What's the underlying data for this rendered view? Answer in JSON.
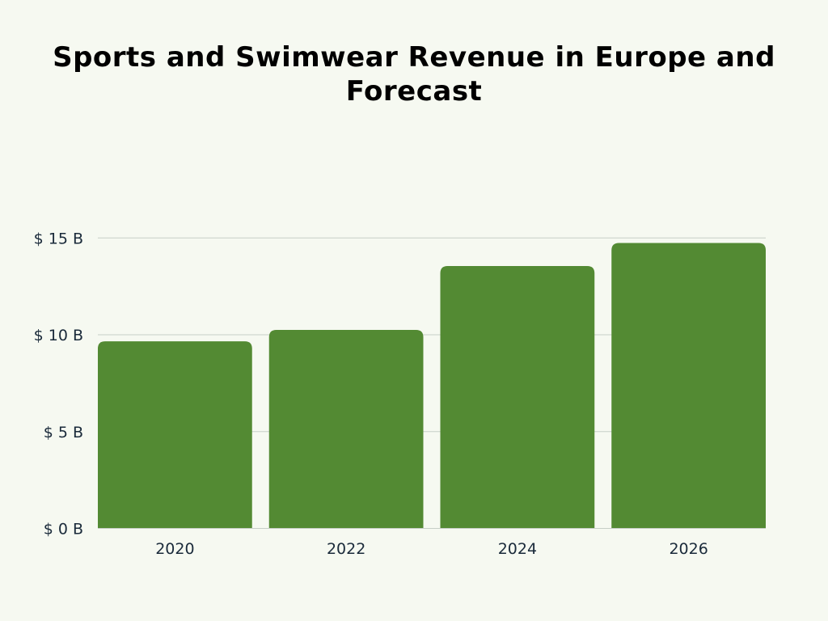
{
  "chart_data": {
    "type": "bar",
    "title": "Sports and Swimwear Revenue in Europe and Forecast",
    "categories": [
      "2020",
      "2022",
      "2024",
      "2026"
    ],
    "values": [
      9.66,
      10.25,
      13.55,
      14.74
    ],
    "unit": "$ B",
    "ylim": [
      0,
      15
    ],
    "yticks": [
      0,
      5,
      10,
      15
    ],
    "ytick_labels": [
      "$ 0 B",
      "$ 5 B",
      "$ 10 B",
      "$ 15 B"
    ],
    "xlabel": "",
    "ylabel": "",
    "grid": true,
    "colors": {
      "bar": "#538a33",
      "grid": "#c7cfc7",
      "background": "#f6f9f1"
    }
  }
}
